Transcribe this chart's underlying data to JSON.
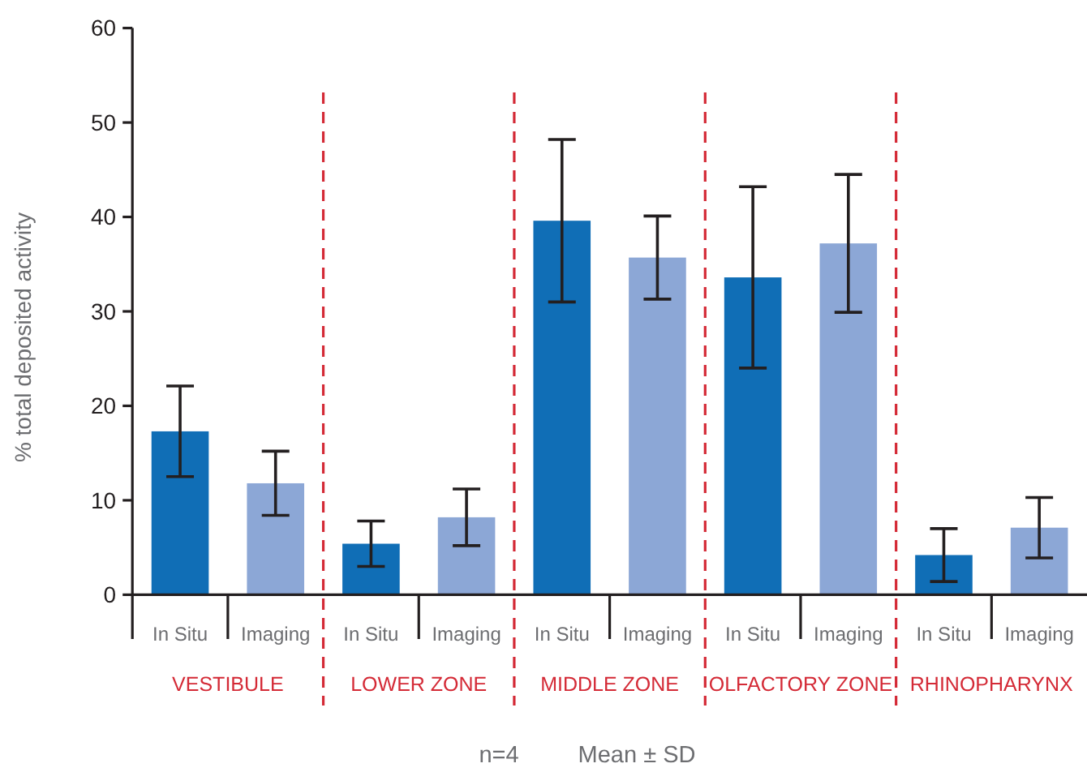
{
  "chart_data": {
    "type": "bar",
    "ylabel": "% total deposited activity",
    "categories": [
      "VESTIBULE",
      "LOWER ZONE",
      "MIDDLE ZONE",
      "OLFACTORY ZONE",
      "RHINOPHARYNX"
    ],
    "series": [
      {
        "name": "In Situ",
        "color": "#106eb6",
        "values": [
          17.3,
          5.4,
          39.6,
          33.6,
          4.2
        ],
        "errors": [
          4.8,
          2.4,
          8.6,
          9.6,
          2.8
        ]
      },
      {
        "name": "Imaging",
        "color": "#8ca7d6",
        "values": [
          11.8,
          8.2,
          35.7,
          37.2,
          7.1
        ],
        "errors": [
          3.4,
          3.0,
          4.4,
          7.3,
          3.2
        ]
      }
    ],
    "ylim": [
      0,
      60
    ],
    "yticks": [
      0,
      10,
      20,
      30,
      40,
      50,
      60
    ],
    "annotations": [
      "n=4",
      "Mean ± SD"
    ]
  }
}
